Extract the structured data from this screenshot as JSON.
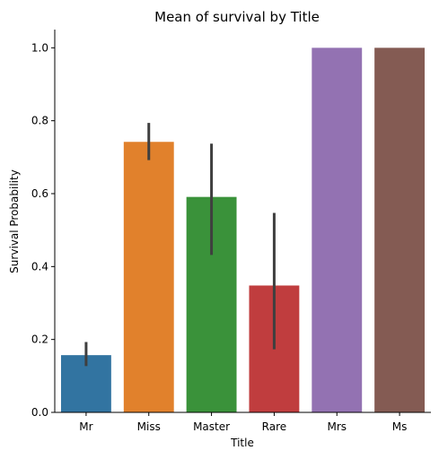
{
  "chart_data": {
    "type": "bar",
    "title": "Mean of survival by Title",
    "xlabel": "Title",
    "ylabel": "Survival Probability",
    "ylim": [
      0,
      1.05
    ],
    "yticks": [
      0.0,
      0.2,
      0.4,
      0.6,
      0.8,
      1.0
    ],
    "ytick_labels": [
      "0.0",
      "0.2",
      "0.4",
      "0.6",
      "0.8",
      "1.0"
    ],
    "grid": false,
    "categories": [
      "Mr",
      "Miss",
      "Master",
      "Rare",
      "Mrs",
      "Ms"
    ],
    "values": [
      0.157,
      0.742,
      0.591,
      0.348,
      1.0,
      1.0
    ],
    "error_low": [
      0.127,
      0.692,
      0.432,
      0.173,
      null,
      null
    ],
    "error_high": [
      0.193,
      0.794,
      0.737,
      0.547,
      null,
      null
    ],
    "colors": [
      "#3274a1",
      "#e1812c",
      "#3a923a",
      "#c03d3e",
      "#9372b2",
      "#845b53"
    ]
  }
}
